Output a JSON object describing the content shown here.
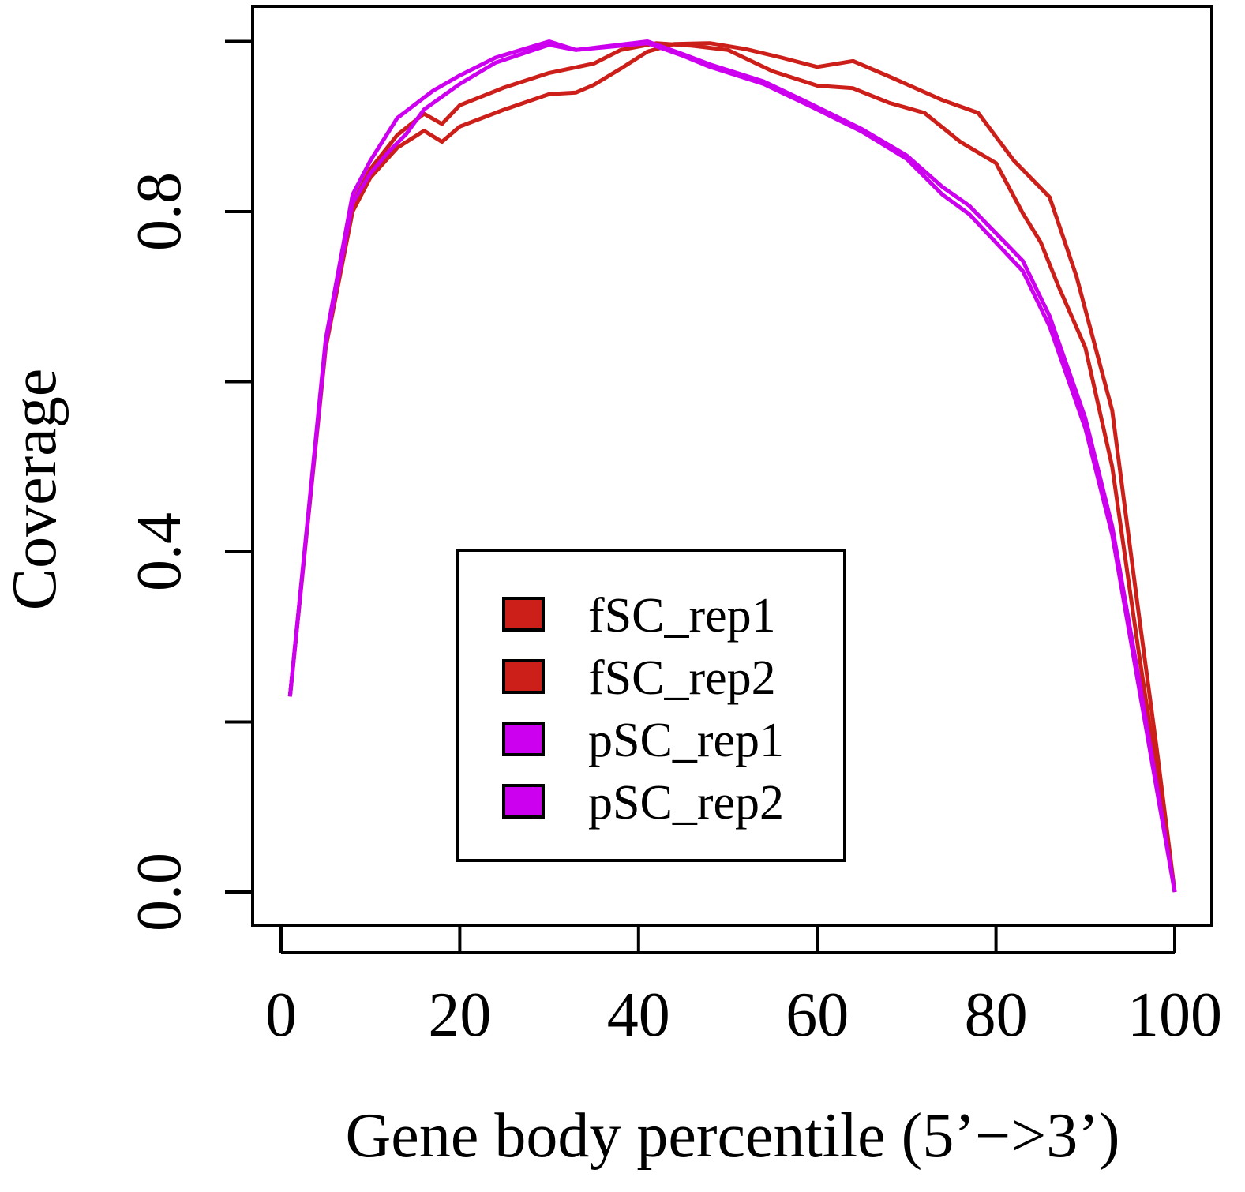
{
  "chart_data": {
    "type": "line",
    "xlabel": "Gene body percentile (5’−>3’)",
    "ylabel": "Coverage",
    "xlim": [
      0,
      100
    ],
    "ylim": [
      0,
      1
    ],
    "x_ticks": [
      0,
      20,
      40,
      60,
      80,
      100
    ],
    "x_tick_labels": [
      "0",
      "20",
      "40",
      "60",
      "80",
      "100"
    ],
    "y_ticks": [
      0,
      0.2,
      0.4,
      0.6,
      0.8,
      1.0
    ],
    "y_tick_labels": [
      "0.0",
      "",
      "0.4",
      "",
      "0.8",
      ""
    ],
    "grid": false,
    "legend_position": "bottom-center",
    "series": [
      {
        "name": "fSC_rep1",
        "color": "#cc1f1a",
        "x": [
          1,
          5,
          8,
          10,
          13,
          16,
          18,
          20,
          25,
          30,
          33,
          35,
          38,
          41,
          44,
          48,
          52,
          56,
          60,
          64,
          68,
          74,
          78,
          82,
          86,
          89,
          93,
          96,
          98,
          100
        ],
        "y": [
          0.23,
          0.64,
          0.8,
          0.84,
          0.875,
          0.895,
          0.882,
          0.9,
          0.92,
          0.938,
          0.94,
          0.949,
          0.968,
          0.988,
          0.997,
          0.998,
          0.991,
          0.981,
          0.97,
          0.977,
          0.959,
          0.931,
          0.916,
          0.86,
          0.817,
          0.724,
          0.566,
          0.325,
          0.167,
          0
        ]
      },
      {
        "name": "fSC_rep2",
        "color": "#cc1f1a",
        "x": [
          1,
          5,
          8,
          10,
          13,
          16,
          18,
          20,
          25,
          30,
          35,
          38,
          42,
          46,
          50,
          55,
          60,
          64,
          68,
          72,
          76,
          80,
          83,
          85,
          87,
          90,
          93,
          96,
          100
        ],
        "y": [
          0.23,
          0.645,
          0.81,
          0.85,
          0.89,
          0.915,
          0.903,
          0.925,
          0.946,
          0.963,
          0.974,
          0.99,
          0.998,
          0.995,
          0.99,
          0.965,
          0.948,
          0.945,
          0.928,
          0.916,
          0.882,
          0.857,
          0.798,
          0.764,
          0.712,
          0.64,
          0.5,
          0.28,
          0
        ]
      },
      {
        "name": "pSC_rep1",
        "color": "#cc00ee",
        "x": [
          1,
          5,
          8,
          10,
          13,
          17,
          20,
          24,
          30,
          33,
          37,
          41,
          45,
          48,
          54,
          59,
          65,
          70,
          74,
          77,
          83,
          86,
          90,
          93,
          96,
          100
        ],
        "y": [
          0.23,
          0.65,
          0.82,
          0.86,
          0.91,
          0.942,
          0.96,
          0.981,
          1.0,
          0.99,
          0.995,
          1.0,
          0.985,
          0.973,
          0.953,
          0.928,
          0.897,
          0.866,
          0.829,
          0.807,
          0.742,
          0.677,
          0.557,
          0.43,
          0.25,
          0
        ]
      },
      {
        "name": "pSC_rep2",
        "color": "#cc00ee",
        "x": [
          1,
          5,
          8,
          10,
          12,
          14,
          16,
          20,
          24,
          30,
          33,
          37,
          41,
          45,
          48,
          54,
          59,
          65,
          70,
          74,
          77,
          83,
          86,
          90,
          93,
          96,
          100
        ],
        "y": [
          0.23,
          0.645,
          0.81,
          0.845,
          0.87,
          0.891,
          0.92,
          0.95,
          0.975,
          0.996,
          0.99,
          0.994,
          0.998,
          0.983,
          0.97,
          0.95,
          0.925,
          0.894,
          0.862,
          0.82,
          0.797,
          0.73,
          0.665,
          0.545,
          0.42,
          0.24,
          0
        ]
      }
    ]
  }
}
